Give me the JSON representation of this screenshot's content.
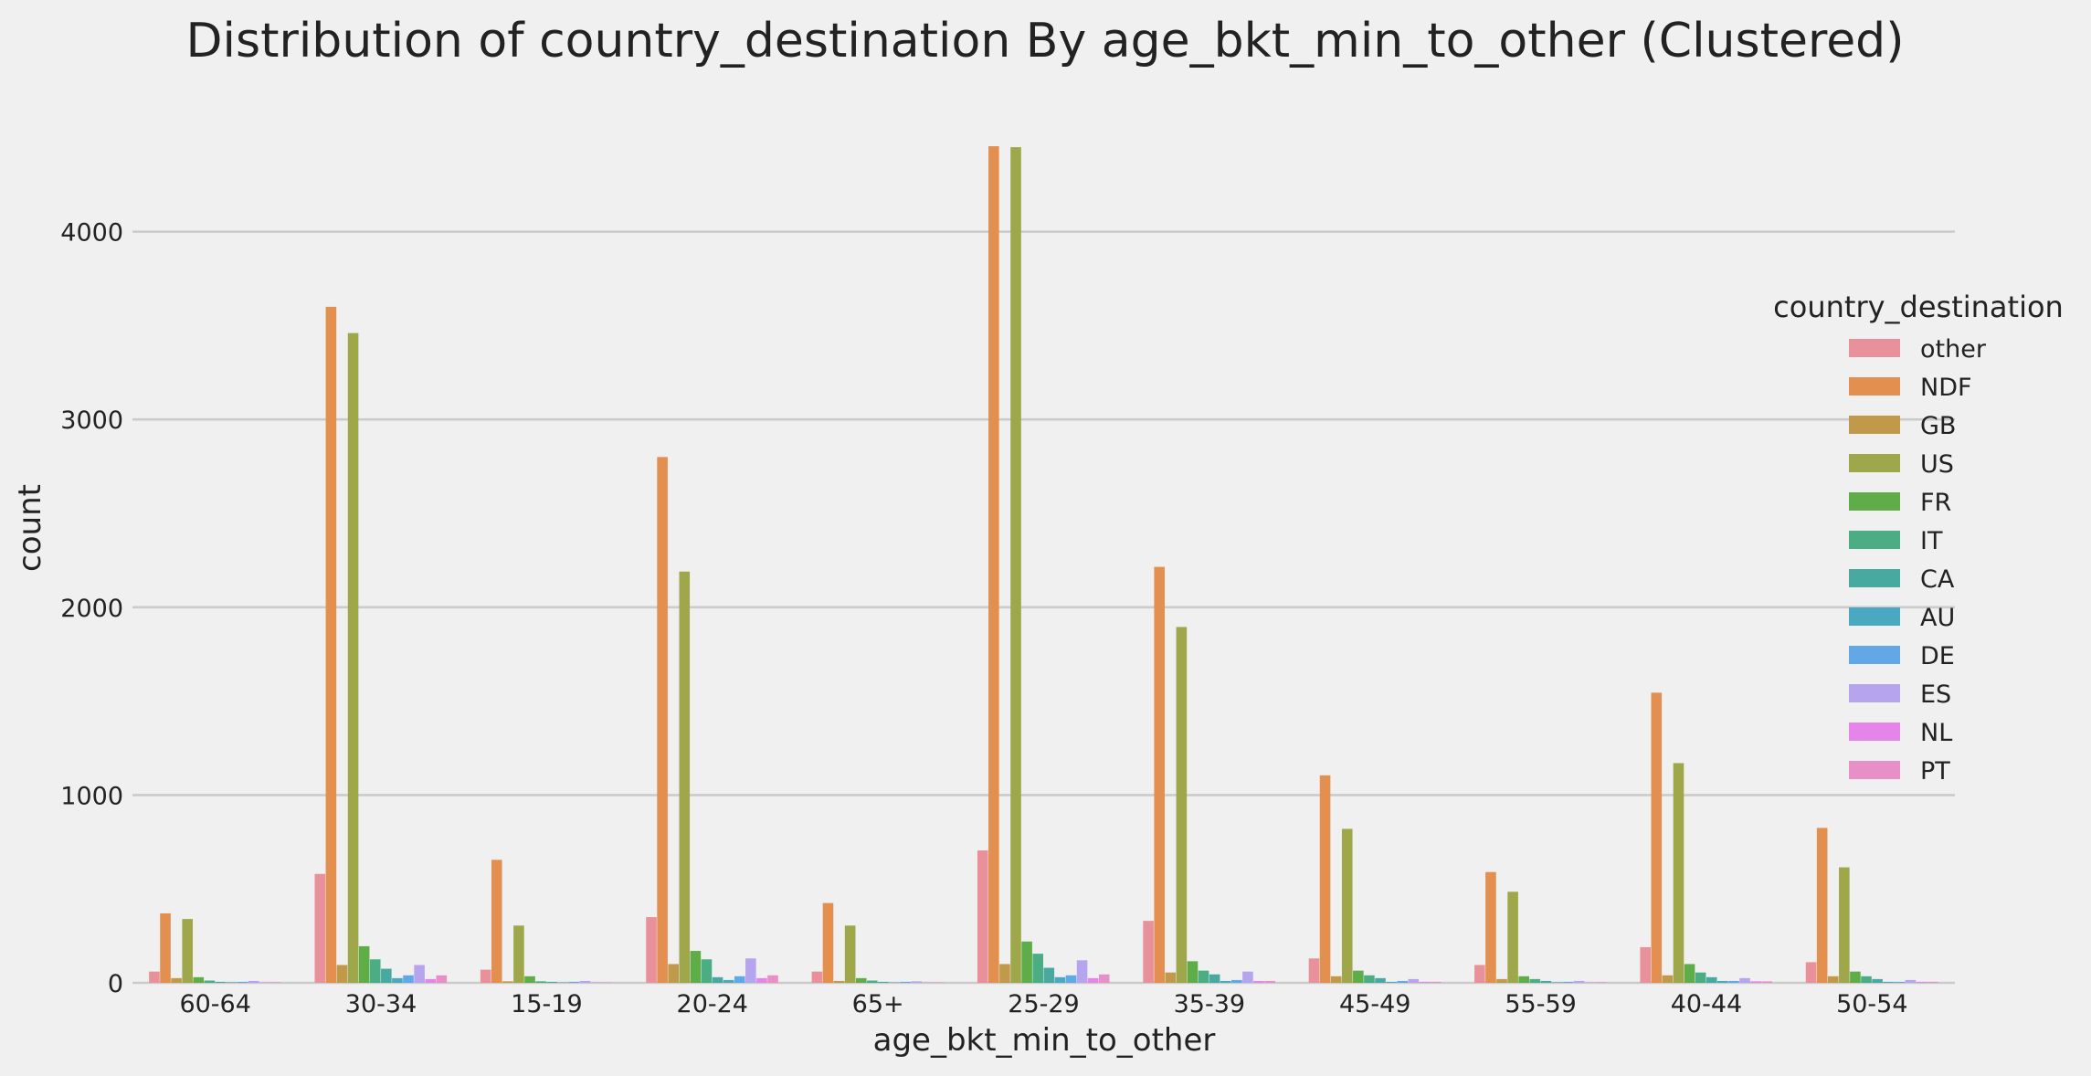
{
  "chart_data": {
    "type": "bar",
    "title": "Distribution of country_destination By age_bkt_min_to_other (Clustered)",
    "xlabel": "age_bkt_min_to_other",
    "ylabel": "count",
    "ylim": [
      0,
      4650
    ],
    "yticks": [
      0,
      1000,
      2000,
      3000,
      4000
    ],
    "grid": "horizontal",
    "legend_title": "country_destination",
    "legend_position": "right",
    "categories": [
      "60-64",
      "30-34",
      "15-19",
      "20-24",
      "65+",
      "25-29",
      "35-39",
      "45-49",
      "55-59",
      "40-44",
      "50-54"
    ],
    "series": [
      {
        "name": "other",
        "color": "#e8919a",
        "values": [
          60,
          580,
          70,
          350,
          60,
          705,
          330,
          130,
          95,
          190,
          110
        ]
      },
      {
        "name": "NDF",
        "color": "#e28f4f",
        "values": [
          370,
          3600,
          655,
          2800,
          425,
          4455,
          2215,
          1105,
          590,
          1545,
          825
        ]
      },
      {
        "name": "GB",
        "color": "#c09a4a",
        "values": [
          25,
          95,
          8,
          100,
          10,
          100,
          55,
          35,
          20,
          40,
          35
        ]
      },
      {
        "name": "US",
        "color": "#9ea84a",
        "values": [
          340,
          3460,
          305,
          2190,
          305,
          4450,
          1895,
          820,
          485,
          1170,
          615
        ]
      },
      {
        "name": "FR",
        "color": "#5fad48",
        "values": [
          30,
          195,
          35,
          170,
          25,
          220,
          115,
          65,
          35,
          100,
          60
        ]
      },
      {
        "name": "IT",
        "color": "#4aad84",
        "values": [
          12,
          125,
          8,
          125,
          12,
          155,
          65,
          40,
          20,
          55,
          35
        ]
      },
      {
        "name": "CA",
        "color": "#47a9a0",
        "values": [
          5,
          75,
          5,
          30,
          5,
          80,
          45,
          25,
          10,
          30,
          20
        ]
      },
      {
        "name": "AU",
        "color": "#4aa8c0",
        "values": [
          3,
          25,
          2,
          15,
          2,
          30,
          10,
          5,
          3,
          10,
          5
        ]
      },
      {
        "name": "DE",
        "color": "#63a8e6",
        "values": [
          5,
          40,
          5,
          35,
          5,
          40,
          15,
          10,
          5,
          10,
          5
        ]
      },
      {
        "name": "ES",
        "color": "#b6a4ee",
        "values": [
          10,
          95,
          10,
          130,
          8,
          120,
          60,
          20,
          10,
          25,
          15
        ]
      },
      {
        "name": "NL",
        "color": "#e585ea",
        "values": [
          2,
          20,
          2,
          25,
          2,
          25,
          10,
          5,
          2,
          8,
          5
        ]
      },
      {
        "name": "PT",
        "color": "#e98fc8",
        "values": [
          3,
          40,
          2,
          40,
          2,
          45,
          10,
          5,
          3,
          8,
          5
        ]
      }
    ]
  }
}
